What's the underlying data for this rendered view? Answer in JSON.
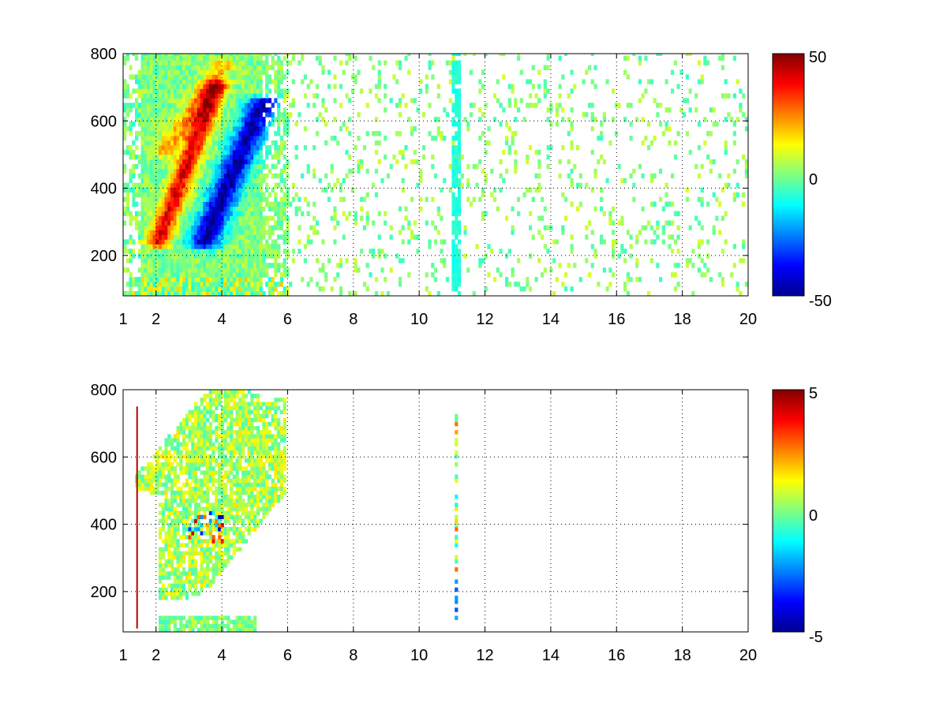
{
  "chart_data": [
    {
      "type": "heatmap",
      "title": "",
      "xlabel": "",
      "ylabel": "",
      "xlim": [
        1,
        20
      ],
      "ylim": [
        80,
        800
      ],
      "x_ticks": [
        "1",
        "2",
        "4",
        "6",
        "8",
        "10",
        "12",
        "14",
        "16",
        "18",
        "20"
      ],
      "y_ticks": [
        "200",
        "400",
        "600",
        "800"
      ],
      "grid": true,
      "colormap": "jet",
      "clim": [
        -50,
        50
      ],
      "colorbar_ticks": [
        "50",
        "0",
        "-50"
      ],
      "features": [
        {
          "description": "positive ridge",
          "from": [
            2.0,
            230
          ],
          "to": [
            3.8,
            700
          ],
          "peak": 40
        },
        {
          "description": "negative ridge",
          "from": [
            3.4,
            230
          ],
          "to": [
            5.2,
            650
          ],
          "peak": -45
        },
        {
          "description": "positive arc",
          "from": [
            2.2,
            500
          ],
          "to": [
            4.0,
            760
          ],
          "peak": 20
        },
        {
          "description": "sparse speckle noise above x=6",
          "range": [
            6,
            20
          ],
          "amplitude": 5
        }
      ]
    },
    {
      "type": "heatmap",
      "title": "",
      "xlabel": "",
      "ylabel": "",
      "xlim": [
        1,
        20
      ],
      "ylim": [
        80,
        800
      ],
      "x_ticks": [
        "1",
        "2",
        "4",
        "6",
        "8",
        "10",
        "12",
        "14",
        "16",
        "18",
        "20"
      ],
      "y_ticks": [
        "200",
        "400",
        "600",
        "800"
      ],
      "grid": true,
      "colormap": "jet",
      "clim": [
        -5,
        5
      ],
      "colorbar_ticks": [
        "5",
        "0",
        "-5"
      ],
      "features": [
        {
          "description": "weak band near zero",
          "from": [
            2.0,
            230
          ],
          "to": [
            5.8,
            700
          ],
          "peak": 1
        },
        {
          "description": "strong mixed values",
          "center": [
            3.5,
            380
          ],
          "peak": 4
        },
        {
          "description": "isolated column",
          "x": 11.1,
          "range": [
            100,
            750
          ],
          "values": [
            -3,
            2
          ]
        },
        {
          "description": "thin line",
          "x": 1.4,
          "range": [
            90,
            750
          ],
          "peak": 5
        }
      ]
    }
  ]
}
